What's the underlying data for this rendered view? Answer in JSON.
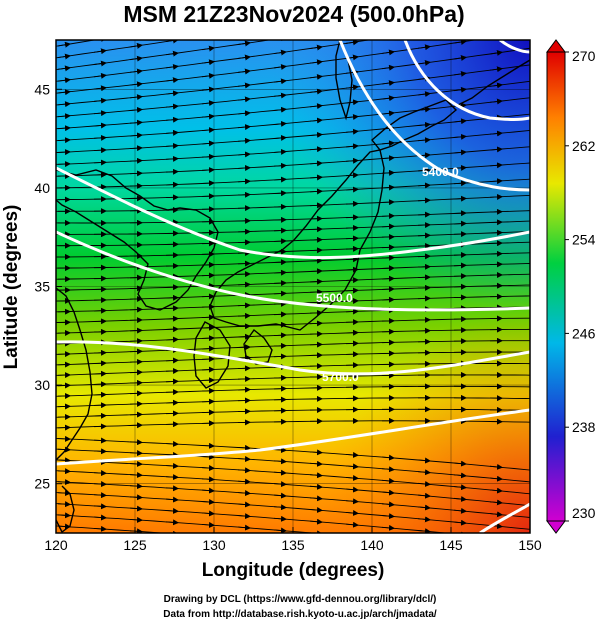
{
  "title": "MSM 21Z23Nov2024 (500.0hPa)",
  "xlabel": "Longitude (degrees)",
  "ylabel": "Latitude  (degrees)",
  "credits": [
    "Drawing by DCL (https://www.gfd-dennou.org/library/dcl/)",
    "Data from http://database.rish.kyoto-u.ac.jp/arch/jmadata/"
  ],
  "map": {
    "lon_range": [
      120,
      150
    ],
    "lat_range": [
      22.5,
      47.5
    ],
    "lon_ticks": [
      120,
      125,
      130,
      135,
      140,
      145,
      150
    ],
    "lat_ticks": [
      25,
      30,
      35,
      40,
      45
    ],
    "grid": true,
    "field": "temperature (K)",
    "streamlines": "wind vectors, predominantly westerly"
  },
  "colorbar": {
    "min": 230,
    "max": 270,
    "ticks": [
      230,
      238,
      246,
      254,
      262,
      270
    ],
    "colors": [
      "#d000d0",
      "#2020d0",
      "#00b8e8",
      "#00d040",
      "#e8e800",
      "#ff8000",
      "#e00000"
    ]
  },
  "contours": [
    {
      "label": "5400.0",
      "value": 5400
    },
    {
      "label": "5500.0",
      "value": 5500
    },
    {
      "label": "5700.0",
      "value": 5700
    }
  ]
}
